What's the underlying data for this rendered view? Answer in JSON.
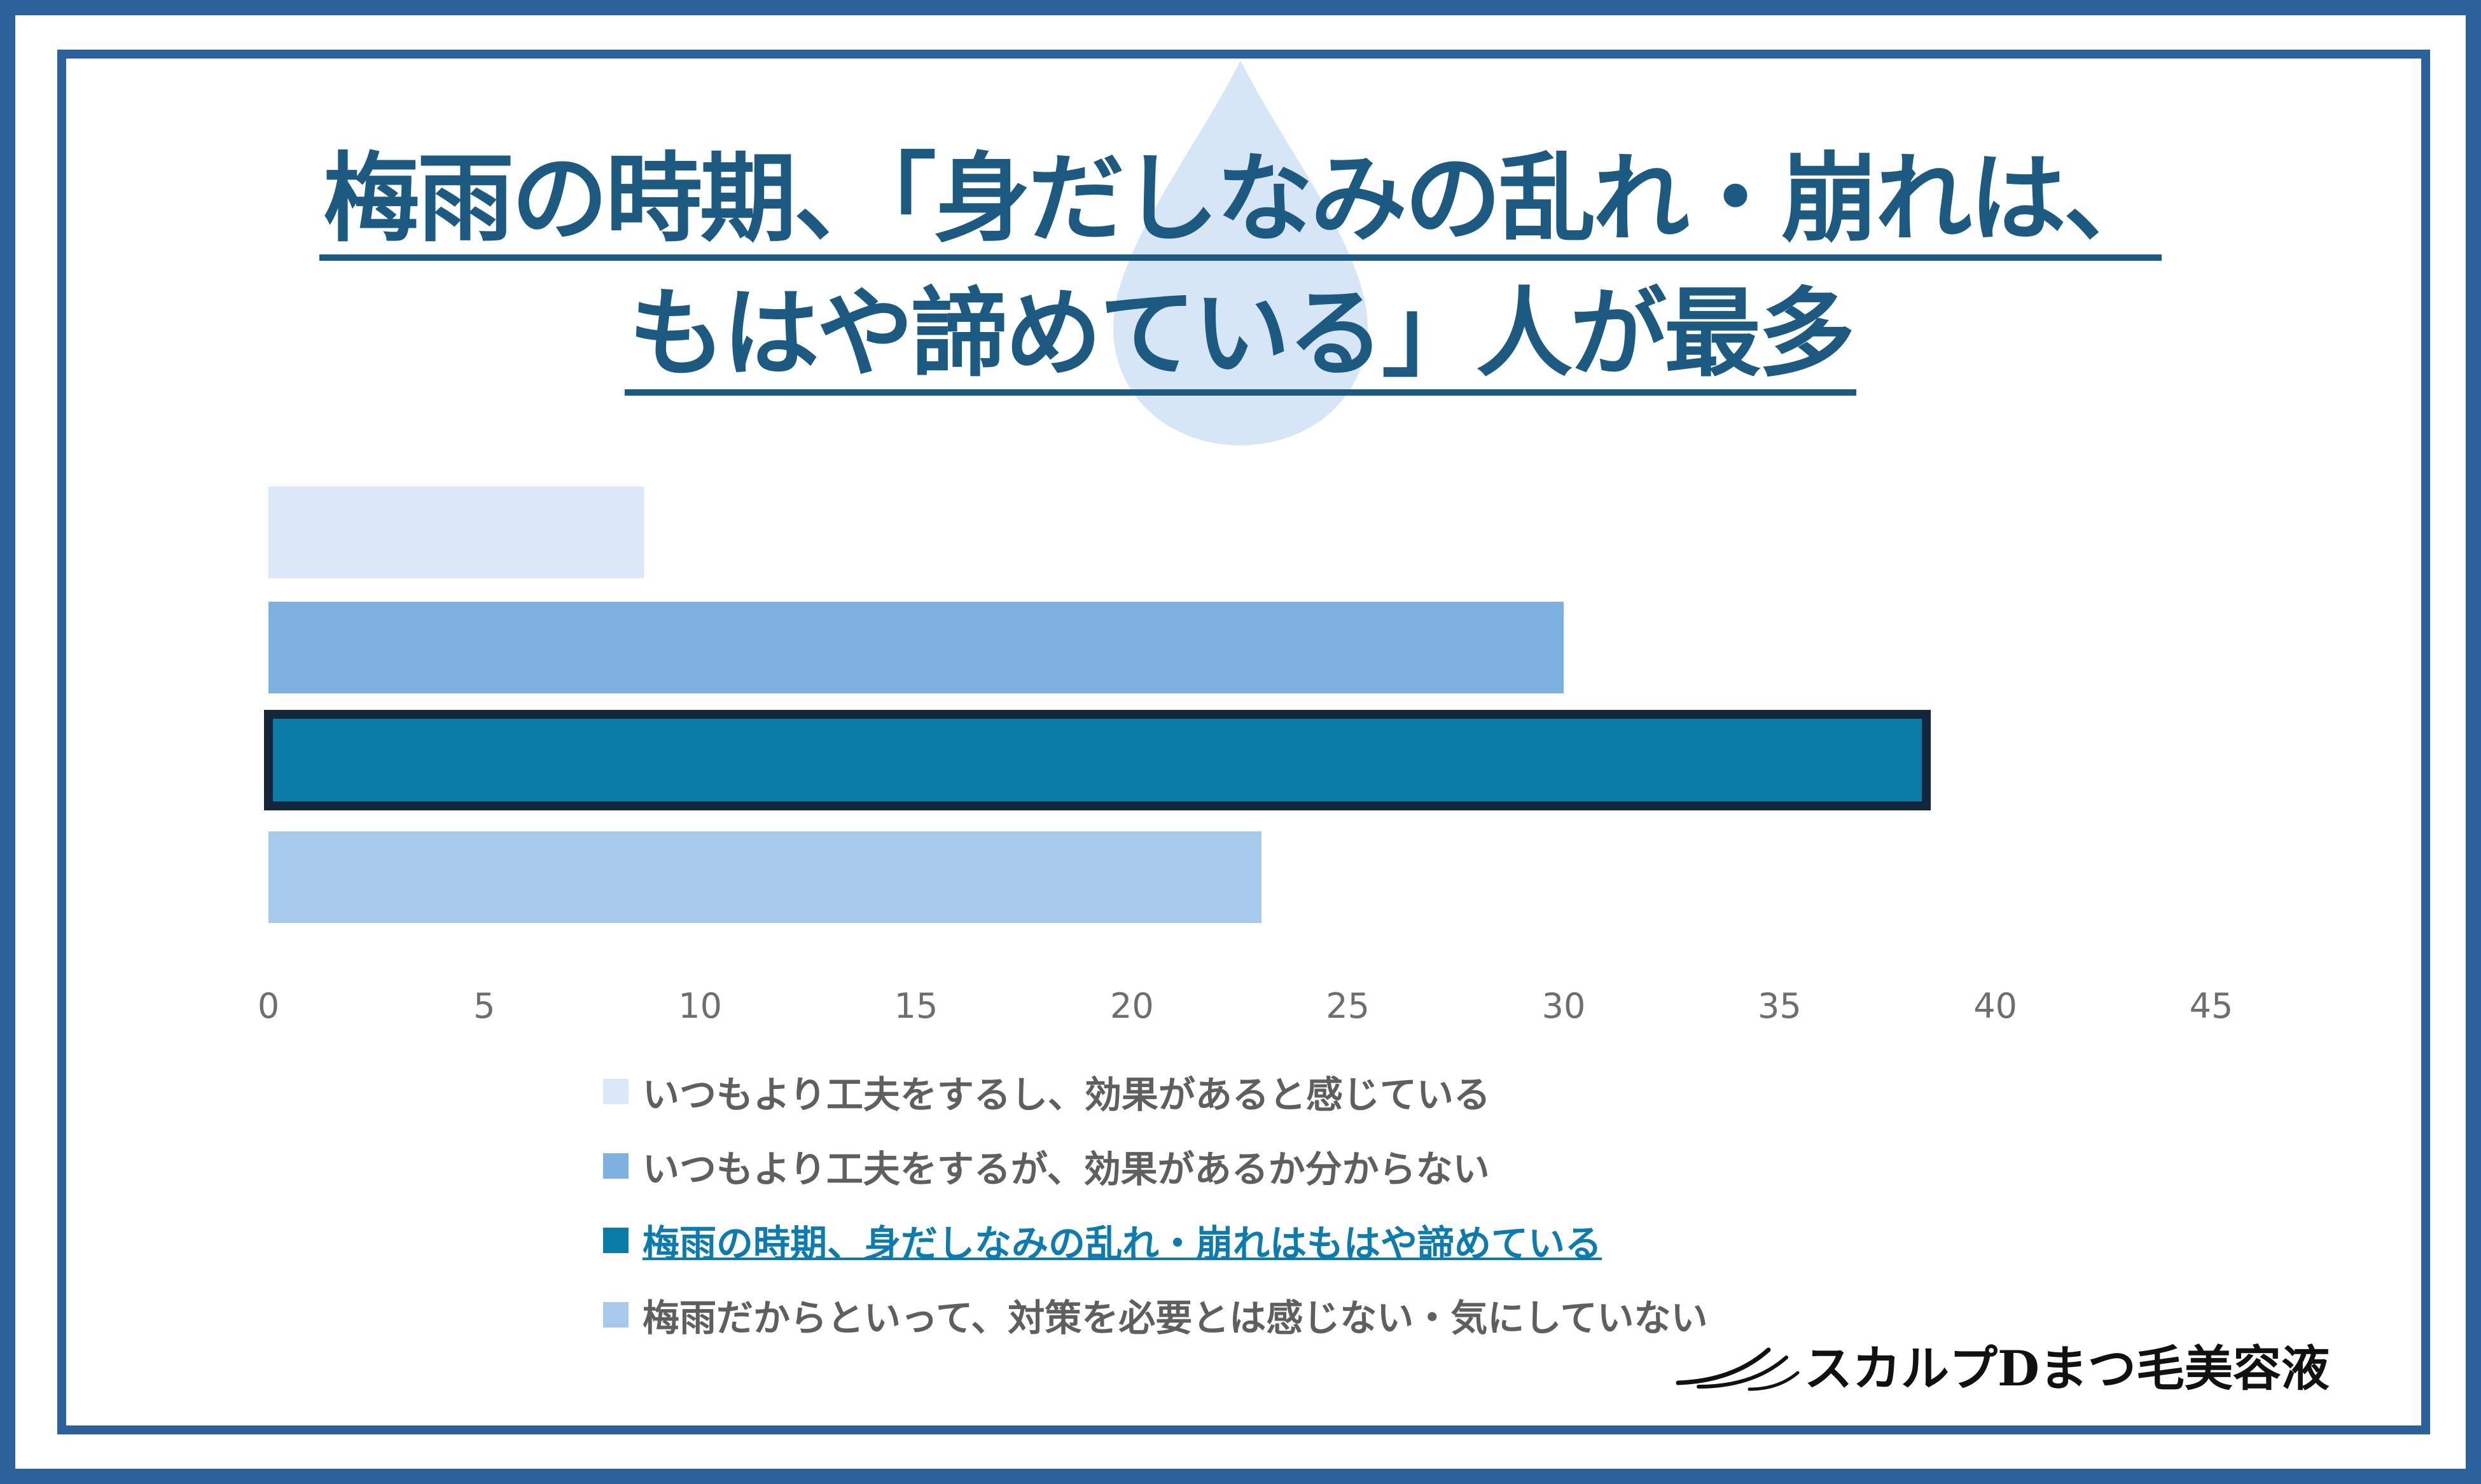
{
  "title": {
    "line1": "梅雨の時期、「身だしなみの乱れ・崩れは、",
    "line2": "もはや諦めている」人が最多"
  },
  "chart_data": {
    "type": "bar",
    "orientation": "horizontal",
    "categories": [
      "いつもより工夫をするし、効果があると感じている",
      "いつもより工夫をするが、効果があるか分からない",
      "梅雨の時期、身だしなみの乱れ・崩れはもはや諦めている",
      "梅雨だからといって、対策を必要とは感じない・気にしていない"
    ],
    "values": [
      8.7,
      30.0,
      38.4,
      23.0
    ],
    "colors": [
      "#dbe8f7",
      "#7eb0e0",
      "#0b7ba8",
      "#a7c9ec"
    ],
    "highlight_index": 2,
    "highlight_outline_color": "#14263a",
    "xlim": [
      0,
      45
    ],
    "xticks": [
      "0",
      "5",
      "10",
      "15",
      "20",
      "25",
      "30",
      "35",
      "40",
      "45"
    ],
    "legend_position": "bottom",
    "grid": false
  },
  "brand": {
    "logo_icon": "eyelash-icon",
    "name": "スカルプDまつ毛美容液"
  },
  "colors": {
    "frame": "#2b619b",
    "title": "#1d5a82",
    "drop": "#d7e6f6"
  }
}
